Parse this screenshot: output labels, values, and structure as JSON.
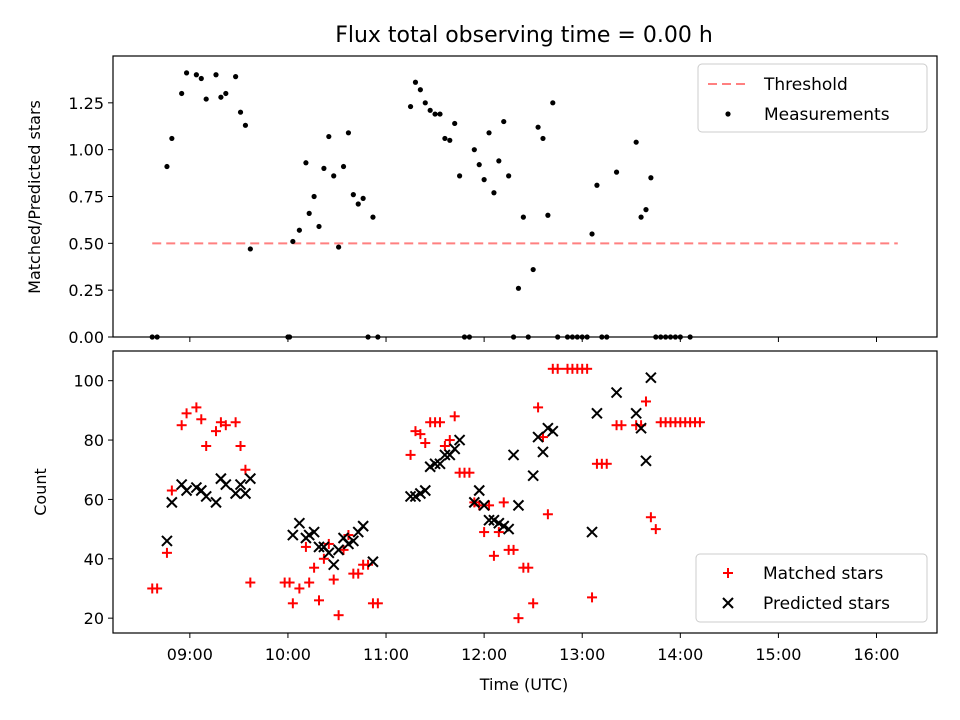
{
  "figure": {
    "title": "Flux total observing time = 0.00 h",
    "xlabel": "Time (UTC)"
  },
  "chart_data": [
    {
      "type": "scatter",
      "panel": "top",
      "ylabel": "Matched/Predicted stars",
      "xlim": [
        "08:13",
        "16:37"
      ],
      "ylim": [
        0,
        1.5
      ],
      "xticks": [
        "09:00",
        "10:00",
        "11:00",
        "12:00",
        "13:00",
        "14:00",
        "15:00",
        "16:00"
      ],
      "yticks": [
        "0.00",
        "0.25",
        "0.50",
        "0.75",
        "1.00",
        "1.25"
      ],
      "legend_position": "top-right",
      "threshold": {
        "name": "Threshold",
        "y": 0.5,
        "x_start": "08:37",
        "x_end": "16:13",
        "color": "#ff8080",
        "style": "dashed"
      },
      "series": [
        {
          "name": "Measurements",
          "color": "#000000",
          "points": [
            [
              "08:37",
              0
            ],
            [
              "08:40",
              0
            ],
            [
              "08:46",
              0.91
            ],
            [
              "08:49",
              1.06
            ],
            [
              "08:55",
              1.3
            ],
            [
              "08:58",
              1.41
            ],
            [
              "09:04",
              1.4
            ],
            [
              "09:07",
              1.38
            ],
            [
              "09:10",
              1.27
            ],
            [
              "09:16",
              1.4
            ],
            [
              "09:19",
              1.28
            ],
            [
              "09:22",
              1.3
            ],
            [
              "09:28",
              1.39
            ],
            [
              "09:31",
              1.2
            ],
            [
              "09:34",
              1.13
            ],
            [
              "09:37",
              0.47
            ],
            [
              "10:00",
              0
            ],
            [
              "10:01",
              0
            ],
            [
              "10:03",
              0.51
            ],
            [
              "10:07",
              0.57
            ],
            [
              "10:11",
              0.93
            ],
            [
              "10:13",
              0.66
            ],
            [
              "10:16",
              0.75
            ],
            [
              "10:19",
              0.59
            ],
            [
              "10:22",
              0.9
            ],
            [
              "10:25",
              1.07
            ],
            [
              "10:28",
              0.86
            ],
            [
              "10:31",
              0.48
            ],
            [
              "10:34",
              0.91
            ],
            [
              "10:37",
              1.09
            ],
            [
              "10:40",
              0.76
            ],
            [
              "10:43",
              0.71
            ],
            [
              "10:46",
              0.74
            ],
            [
              "10:49",
              0
            ],
            [
              "10:52",
              0.64
            ],
            [
              "10:55",
              0
            ],
            [
              "11:15",
              1.23
            ],
            [
              "11:18",
              1.36
            ],
            [
              "11:21",
              1.32
            ],
            [
              "11:24",
              1.25
            ],
            [
              "11:27",
              1.21
            ],
            [
              "11:30",
              1.19
            ],
            [
              "11:33",
              1.19
            ],
            [
              "11:36",
              1.06
            ],
            [
              "11:39",
              1.05
            ],
            [
              "11:42",
              1.14
            ],
            [
              "11:45",
              0.86
            ],
            [
              "11:48",
              0
            ],
            [
              "11:51",
              0
            ],
            [
              "11:54",
              1.0
            ],
            [
              "11:57",
              0.92
            ],
            [
              "12:00",
              0.84
            ],
            [
              "12:03",
              1.09
            ],
            [
              "12:06",
              0.77
            ],
            [
              "12:09",
              0.94
            ],
            [
              "12:12",
              1.15
            ],
            [
              "12:15",
              0.86
            ],
            [
              "12:18",
              0
            ],
            [
              "12:21",
              0.26
            ],
            [
              "12:24",
              0.64
            ],
            [
              "12:27",
              0
            ],
            [
              "12:30",
              0.36
            ],
            [
              "12:33",
              1.12
            ],
            [
              "12:36",
              1.06
            ],
            [
              "12:39",
              0.65
            ],
            [
              "12:42",
              1.25
            ],
            [
              "12:45",
              0
            ],
            [
              "12:51",
              0
            ],
            [
              "12:54",
              0
            ],
            [
              "12:57",
              0
            ],
            [
              "13:00",
              0
            ],
            [
              "13:03",
              0
            ],
            [
              "13:06",
              0.55
            ],
            [
              "13:09",
              0.81
            ],
            [
              "13:12",
              0
            ],
            [
              "13:15",
              0
            ],
            [
              "13:21",
              0.88
            ],
            [
              "13:33",
              1.04
            ],
            [
              "13:36",
              0.64
            ],
            [
              "13:39",
              0.68
            ],
            [
              "13:42",
              0.85
            ],
            [
              "13:45",
              0
            ],
            [
              "13:48",
              0
            ],
            [
              "13:51",
              0
            ],
            [
              "13:54",
              0
            ],
            [
              "13:57",
              0
            ],
            [
              "14:00",
              0
            ],
            [
              "14:06",
              0
            ]
          ]
        }
      ]
    },
    {
      "type": "scatter",
      "panel": "bottom",
      "ylabel": "Count",
      "xlim": [
        "08:13",
        "16:37"
      ],
      "ylim": [
        15,
        110
      ],
      "xticks": [
        "09:00",
        "10:00",
        "11:00",
        "12:00",
        "13:00",
        "14:00",
        "15:00",
        "16:00"
      ],
      "yticks": [
        "20",
        "40",
        "60",
        "80",
        "100"
      ],
      "legend_position": "bottom-right",
      "series": [
        {
          "name": "Matched stars",
          "color": "#ff0000",
          "marker": "plus",
          "points": [
            [
              "08:37",
              30
            ],
            [
              "08:40",
              30
            ],
            [
              "08:46",
              42
            ],
            [
              "08:49",
              63
            ],
            [
              "08:55",
              85
            ],
            [
              "08:58",
              89
            ],
            [
              "09:04",
              91
            ],
            [
              "09:07",
              87
            ],
            [
              "09:10",
              78
            ],
            [
              "09:16",
              83
            ],
            [
              "09:19",
              86
            ],
            [
              "09:22",
              85
            ],
            [
              "09:28",
              86
            ],
            [
              "09:31",
              78
            ],
            [
              "09:34",
              70
            ],
            [
              "09:37",
              32
            ],
            [
              "09:58",
              32
            ],
            [
              "10:01",
              32
            ],
            [
              "10:03",
              25
            ],
            [
              "10:07",
              30
            ],
            [
              "10:11",
              44
            ],
            [
              "10:13",
              32
            ],
            [
              "10:16",
              37
            ],
            [
              "10:19",
              26
            ],
            [
              "10:22",
              40
            ],
            [
              "10:25",
              45
            ],
            [
              "10:28",
              33
            ],
            [
              "10:31",
              21
            ],
            [
              "10:34",
              43
            ],
            [
              "10:37",
              48
            ],
            [
              "10:40",
              35
            ],
            [
              "10:43",
              35
            ],
            [
              "10:46",
              38
            ],
            [
              "10:49",
              38
            ],
            [
              "10:52",
              25
            ],
            [
              "10:55",
              25
            ],
            [
              "11:15",
              75
            ],
            [
              "11:18",
              83
            ],
            [
              "11:21",
              82
            ],
            [
              "11:24",
              79
            ],
            [
              "11:27",
              86
            ],
            [
              "11:30",
              86
            ],
            [
              "11:33",
              86
            ],
            [
              "11:36",
              78
            ],
            [
              "11:39",
              80
            ],
            [
              "11:42",
              88
            ],
            [
              "11:45",
              69
            ],
            [
              "11:48",
              69
            ],
            [
              "11:51",
              69
            ],
            [
              "11:54",
              59
            ],
            [
              "11:57",
              58
            ],
            [
              "12:00",
              49
            ],
            [
              "12:03",
              58
            ],
            [
              "12:06",
              41
            ],
            [
              "12:09",
              49
            ],
            [
              "12:12",
              59
            ],
            [
              "12:15",
              43
            ],
            [
              "12:18",
              43
            ],
            [
              "12:21",
              20
            ],
            [
              "12:24",
              37
            ],
            [
              "12:27",
              37
            ],
            [
              "12:30",
              25
            ],
            [
              "12:33",
              91
            ],
            [
              "12:36",
              81
            ],
            [
              "12:39",
              55
            ],
            [
              "12:42",
              104
            ],
            [
              "12:45",
              104
            ],
            [
              "12:51",
              104
            ],
            [
              "12:54",
              104
            ],
            [
              "12:57",
              104
            ],
            [
              "13:00",
              104
            ],
            [
              "13:03",
              104
            ],
            [
              "13:06",
              27
            ],
            [
              "13:09",
              72
            ],
            [
              "13:12",
              72
            ],
            [
              "13:15",
              72
            ],
            [
              "13:21",
              85
            ],
            [
              "13:24",
              85
            ],
            [
              "13:33",
              85
            ],
            [
              "13:36",
              85
            ],
            [
              "13:39",
              93
            ],
            [
              "13:42",
              54
            ],
            [
              "13:45",
              50
            ],
            [
              "13:48",
              86
            ],
            [
              "13:51",
              86
            ],
            [
              "13:54",
              86
            ],
            [
              "13:57",
              86
            ],
            [
              "14:00",
              86
            ],
            [
              "14:03",
              86
            ],
            [
              "14:06",
              86
            ],
            [
              "14:09",
              86
            ],
            [
              "14:12",
              86
            ]
          ]
        },
        {
          "name": "Predicted stars",
          "color": "#000000",
          "marker": "x",
          "points": [
            [
              "08:46",
              46
            ],
            [
              "08:49",
              59
            ],
            [
              "08:55",
              65
            ],
            [
              "08:58",
              63
            ],
            [
              "09:04",
              64
            ],
            [
              "09:07",
              63
            ],
            [
              "09:10",
              61
            ],
            [
              "09:16",
              59
            ],
            [
              "09:19",
              67
            ],
            [
              "09:22",
              65
            ],
            [
              "09:28",
              62
            ],
            [
              "09:31",
              65
            ],
            [
              "09:34",
              62
            ],
            [
              "09:37",
              67
            ],
            [
              "10:03",
              48
            ],
            [
              "10:07",
              52
            ],
            [
              "10:11",
              47
            ],
            [
              "10:13",
              48
            ],
            [
              "10:16",
              49
            ],
            [
              "10:19",
              44
            ],
            [
              "10:22",
              44
            ],
            [
              "10:25",
              42
            ],
            [
              "10:28",
              38
            ],
            [
              "10:31",
              43
            ],
            [
              "10:34",
              47
            ],
            [
              "10:37",
              45
            ],
            [
              "10:40",
              46
            ],
            [
              "10:43",
              49
            ],
            [
              "10:46",
              51
            ],
            [
              "10:52",
              39
            ],
            [
              "11:15",
              61
            ],
            [
              "11:18",
              61
            ],
            [
              "11:21",
              62
            ],
            [
              "11:24",
              63
            ],
            [
              "11:27",
              71
            ],
            [
              "11:30",
              72
            ],
            [
              "11:33",
              72
            ],
            [
              "11:36",
              75
            ],
            [
              "11:39",
              75
            ],
            [
              "11:42",
              77
            ],
            [
              "11:45",
              80
            ],
            [
              "11:54",
              59
            ],
            [
              "11:57",
              63
            ],
            [
              "12:00",
              58
            ],
            [
              "12:03",
              53
            ],
            [
              "12:06",
              53
            ],
            [
              "12:09",
              52
            ],
            [
              "12:12",
              51
            ],
            [
              "12:15",
              50
            ],
            [
              "12:18",
              75
            ],
            [
              "12:21",
              58
            ],
            [
              "12:30",
              68
            ],
            [
              "12:33",
              81
            ],
            [
              "12:36",
              76
            ],
            [
              "12:39",
              84
            ],
            [
              "12:42",
              83
            ],
            [
              "13:06",
              49
            ],
            [
              "13:09",
              89
            ],
            [
              "13:21",
              96
            ],
            [
              "13:33",
              89
            ],
            [
              "13:36",
              84
            ],
            [
              "13:39",
              73
            ],
            [
              "13:42",
              101
            ]
          ]
        }
      ]
    }
  ]
}
